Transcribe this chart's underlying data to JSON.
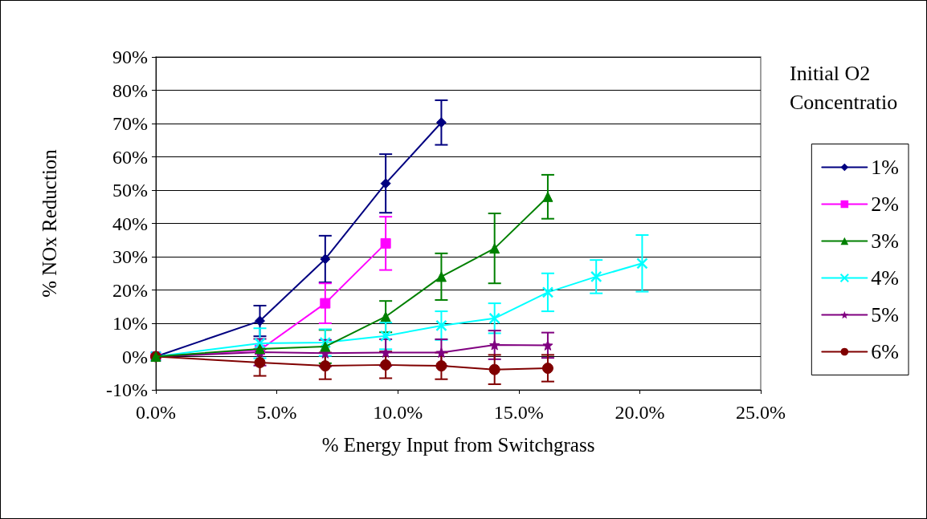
{
  "chart_data": {
    "type": "line",
    "xlabel": "% Energy Input from Switchgrass",
    "ylabel": "% NOx Reduction",
    "legend_title": "Initial O2 Concentratio",
    "legend": "right",
    "grid": "y",
    "xlim": [
      0,
      25
    ],
    "xticks": [
      {
        "value": 0,
        "label": "0.0%"
      },
      {
        "value": 5,
        "label": "5.0%"
      },
      {
        "value": 10,
        "label": "10.0%"
      },
      {
        "value": 15,
        "label": "15.0%"
      },
      {
        "value": 20,
        "label": "20.0%"
      },
      {
        "value": 25,
        "label": "25.0%"
      }
    ],
    "ylim": [
      -10,
      90
    ],
    "yticks": [
      {
        "value": -10,
        "label": "-10%"
      },
      {
        "value": 0,
        "label": "0%"
      },
      {
        "value": 10,
        "label": "10%"
      },
      {
        "value": 20,
        "label": "20%"
      },
      {
        "value": 30,
        "label": "30%"
      },
      {
        "value": 40,
        "label": "40%"
      },
      {
        "value": 50,
        "label": "50%"
      },
      {
        "value": 60,
        "label": "60%"
      },
      {
        "value": 70,
        "label": "70%"
      },
      {
        "value": 80,
        "label": "80%"
      },
      {
        "value": 90,
        "label": "90%"
      }
    ],
    "series": [
      {
        "name": "1%",
        "color": "#000080",
        "marker": "diamond",
        "x": [
          0,
          4.3,
          7.0,
          9.5,
          11.8
        ],
        "values": [
          0,
          10.7,
          29.3,
          52,
          70.3
        ],
        "errors": [
          null,
          4.6,
          7,
          8.8,
          6.7
        ]
      },
      {
        "name": "2%",
        "color": "#ff00ff",
        "marker": "square",
        "x": [
          0,
          4.3,
          7.0,
          9.5
        ],
        "values": [
          0,
          2,
          16,
          34
        ],
        "errors": [
          null,
          null,
          6,
          8
        ]
      },
      {
        "name": "3%",
        "color": "#008000",
        "marker": "triangle",
        "x": [
          0,
          4.3,
          7.0,
          9.5,
          11.8,
          14.0,
          16.2
        ],
        "values": [
          0,
          2.3,
          3,
          12,
          24,
          32.5,
          48
        ],
        "errors": [
          null,
          null,
          5,
          4.7,
          7,
          10.5,
          6.6
        ]
      },
      {
        "name": "4%",
        "color": "#00ffff",
        "marker": "cross",
        "x": [
          0,
          4.3,
          7.0,
          9.5,
          11.8,
          14.0,
          16.2,
          18.2,
          20.1
        ],
        "values": [
          0,
          4,
          4.2,
          6.2,
          9.3,
          11.5,
          19.3,
          24,
          28
        ],
        "errors": [
          null,
          4.5,
          4,
          4,
          4.3,
          4.5,
          5.7,
          5,
          8.5
        ]
      },
      {
        "name": "5%",
        "color": "#800080",
        "marker": "star",
        "x": [
          0,
          4.3,
          7.0,
          9.5,
          11.8,
          14.0,
          16.2
        ],
        "values": [
          0,
          1.3,
          1,
          1.2,
          1.2,
          3.5,
          3.4
        ],
        "errors": [
          null,
          4,
          4,
          4,
          4,
          4.3,
          3.8
        ]
      },
      {
        "name": "6%",
        "color": "#800000",
        "marker": "circle",
        "x": [
          0,
          4.3,
          7.0,
          9.5,
          11.8,
          14.0,
          16.2
        ],
        "values": [
          0,
          -1.8,
          -2.8,
          -2.5,
          -2.8,
          -3.9,
          -3.5
        ],
        "errors": [
          null,
          4,
          4,
          4,
          4,
          4.4,
          4
        ]
      }
    ]
  }
}
